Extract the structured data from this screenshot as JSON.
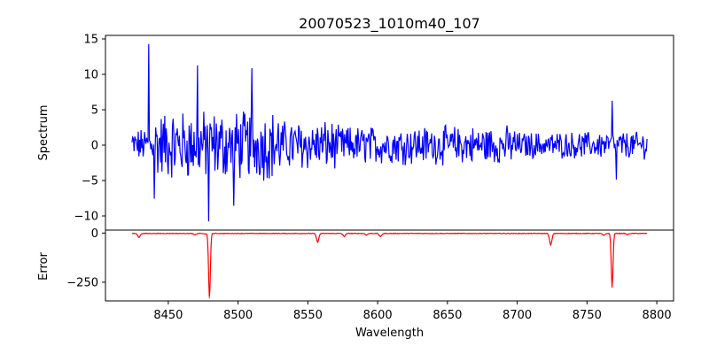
{
  "chart_data": [
    {
      "type": "line",
      "title": "20070523_1010m40_107",
      "xlabel": "",
      "ylabel": "Spectrum",
      "xlim": [
        8405,
        8812
      ],
      "ylim": [
        -12,
        15.5
      ],
      "yticks": [
        -10,
        -5,
        0,
        5,
        10,
        15
      ],
      "xticks_labels_shown": false,
      "grid": false,
      "series": [
        {
          "color": "#0000ff",
          "x_range": [
            8424,
            8793
          ],
          "points": 740,
          "note_shape": "noisy spectrum fluctuating mostly within about -5 to 5"
        }
      ],
      "features": [
        {
          "x": 8436,
          "y": 14.2
        },
        {
          "x": 8440,
          "y": -7.5
        },
        {
          "x": 8471,
          "y": 11.2
        },
        {
          "x": 8479,
          "y": -10.7
        },
        {
          "x": 8510,
          "y": 10.8
        },
        {
          "x": 8497,
          "y": -8.5
        },
        {
          "x": 8768,
          "y": 6.2
        },
        {
          "x": 8771,
          "y": -4.8
        }
      ]
    },
    {
      "type": "line",
      "xlabel": "Wavelength",
      "ylabel": "Error",
      "xlim": [
        8405,
        8812
      ],
      "ylim": [
        -345,
        15
      ],
      "xticks": [
        8450,
        8500,
        8550,
        8600,
        8650,
        8700,
        8750,
        8800
      ],
      "yticks": [
        -250,
        0
      ],
      "grid": false,
      "series": [
        {
          "color": "#ff0000",
          "x_range": [
            8424,
            8793
          ],
          "baseline": -2,
          "dips": [
            {
              "x": 8429,
              "y": -22
            },
            {
              "x": 8469,
              "y": -10
            },
            {
              "x": 8476,
              "y": -5
            },
            {
              "x": 8479.5,
              "y": -330
            },
            {
              "x": 8557,
              "y": -45
            },
            {
              "x": 8576,
              "y": -17
            },
            {
              "x": 8592,
              "y": -10
            },
            {
              "x": 8602,
              "y": -18
            },
            {
              "x": 8724,
              "y": -60
            },
            {
              "x": 8762,
              "y": -12
            },
            {
              "x": 8768,
              "y": -275
            },
            {
              "x": 8779,
              "y": -8
            }
          ]
        }
      ]
    }
  ]
}
